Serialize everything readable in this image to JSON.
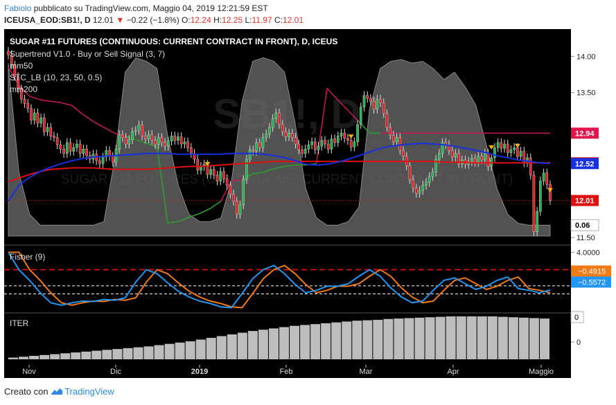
{
  "header": {
    "user": "Fabiolo",
    "published_text": "pubblicato su TradingView.com, Maggio 04, 2019 12:21:59 EST",
    "symbol": "ICEUSA_EOD:SB1!, D",
    "last_price": "12.01",
    "change": "−0.22 (−1.8%)",
    "o_label": "O:",
    "o_value": "12.24",
    "h_label": "H:",
    "h_value": "12.25",
    "l_label": "L:",
    "l_value": "11.97",
    "c_label": "C:",
    "c_value": "12.01"
  },
  "legend": {
    "title": "SUGAR #11 FUTURES (CONTINUOUS: CURRENT CONTRACT IN FRONT), D, ICEUS",
    "supertrend": "Supertrend V1.0 - Buy or Sell Signal (3, 7)",
    "mm50": "mm50",
    "stc": "STC_LB (10, 23, 50, 0.5)",
    "mm200": "mm200",
    "fisher": "Fisher (9)",
    "iter": "ITER"
  },
  "watermark": {
    "symbol": "SB1!, D",
    "name": "SUGAR #11 FUTURES (CONTINUOUS: CURRENT CONTRACT IN FRONT)"
  },
  "price_axis": {
    "ticks": [
      "14.00",
      "13.50",
      "11.50"
    ],
    "badges": [
      {
        "name": "supertrend-badge",
        "text": "12.94",
        "value": 12.94,
        "color": "#e0164d"
      },
      {
        "name": "mm200-badge",
        "text": "12.53",
        "value": 12.53,
        "color": "#e01010"
      },
      {
        "name": "mm50-badge",
        "text": "12.52",
        "value": 12.52,
        "color": "#1530e0"
      },
      {
        "name": "last-price-badge",
        "text": "12.01",
        "value": 12.01,
        "color": "#e01010"
      },
      {
        "name": "stc-badge",
        "text": "0.06",
        "value": 0.06,
        "color": "#ffffff"
      }
    ]
  },
  "fisher_axis": {
    "ticks": [
      "4.0000"
    ],
    "badges": [
      {
        "name": "fisher-trigger-badge",
        "text": "−0.4915",
        "color": "#f07a16"
      },
      {
        "name": "fisher-value-badge",
        "text": "−0.5572",
        "color": "#2196f3"
      }
    ]
  },
  "iter_axis": {
    "ticks": [
      "0"
    ],
    "badge": "0"
  },
  "time_axis": {
    "labels": [
      "Nov",
      "Dic",
      "2019",
      "Feb",
      "Mar",
      "Apr",
      "Maggio"
    ]
  },
  "footer": {
    "created_with": "Creato con",
    "brand": "TradingView"
  },
  "colors": {
    "background": "#000000",
    "up_candle": "#22b14c",
    "down_candle": "#e02020",
    "mm50": "#1530e0",
    "mm200": "#e01010",
    "supertrend_sell": "#c2185b",
    "supertrend_buy": "#2e9e2e",
    "stc_area": "#6e6e6e",
    "fisher": "#2196f3",
    "fisher_trigger": "#f07a16",
    "iter_bars": "#bdbdbd"
  },
  "chart_data": {
    "type": "candlestick",
    "title": "SUGAR #11 FUTURES (CONTINUOUS: CURRENT CONTRACT IN FRONT), D, ICEUS",
    "price_ylim": [
      11.5,
      14.3
    ],
    "x_labels": [
      "Nov",
      "Dic",
      "2019",
      "Feb",
      "Mar",
      "Apr",
      "Maggio"
    ],
    "close": [
      14.02,
      13.88,
      13.72,
      13.55,
      13.41,
      13.35,
      13.28,
      13.12,
      13.22,
      13.08,
      13.15,
      12.96,
      13.02,
      12.9,
      12.88,
      12.78,
      12.72,
      12.66,
      12.81,
      12.69,
      12.74,
      12.79,
      12.66,
      12.72,
      12.63,
      12.58,
      12.65,
      12.56,
      12.52,
      12.61,
      12.7,
      12.62,
      12.54,
      12.72,
      12.92,
      12.88,
      12.79,
      12.85,
      12.96,
      12.98,
      13.05,
      12.9,
      12.86,
      12.92,
      12.84,
      12.78,
      12.88,
      12.81,
      12.76,
      12.83,
      12.9,
      12.84,
      12.89,
      12.79,
      12.82,
      12.74,
      12.66,
      12.58,
      12.43,
      12.48,
      12.51,
      12.37,
      12.44,
      12.36,
      12.28,
      12.41,
      12.31,
      12.22,
      12.1,
      12.0,
      11.82,
      11.95,
      12.3,
      12.58,
      12.71,
      12.69,
      12.81,
      12.74,
      12.88,
      12.93,
      13.02,
      13.14,
      13.22,
      13.06,
      12.96,
      12.89,
      12.94,
      12.88,
      12.79,
      12.71,
      12.66,
      12.72,
      12.78,
      12.82,
      12.71,
      12.76,
      12.84,
      12.79,
      12.72,
      12.86,
      12.81,
      12.9,
      12.94,
      12.87,
      12.84,
      12.75,
      12.82,
      13.06,
      13.3,
      13.46,
      13.42,
      13.38,
      13.27,
      13.41,
      13.36,
      13.21,
      13.02,
      12.91,
      12.82,
      12.88,
      12.7,
      12.62,
      12.49,
      12.3,
      12.18,
      12.11,
      12.15,
      12.22,
      12.26,
      12.34,
      12.4,
      12.58,
      12.66,
      12.81,
      12.78,
      12.7,
      12.61,
      12.66,
      12.52,
      12.57,
      12.51,
      12.55,
      12.59,
      12.54,
      12.62,
      12.57,
      12.66,
      12.48,
      12.6,
      12.74,
      12.81,
      12.73,
      12.79,
      12.67,
      12.71,
      12.74,
      12.62,
      12.69,
      12.53,
      12.6,
      12.36,
      11.58,
      11.86,
      12.28,
      12.39,
      12.23,
      12.01
    ],
    "mm50": [
      12.0,
      12.22,
      12.33,
      12.41,
      12.47,
      12.52,
      12.56,
      12.59,
      12.61,
      12.62,
      12.63,
      12.64,
      12.65,
      12.66,
      12.66,
      12.66,
      12.65,
      12.65,
      12.65,
      12.65,
      12.65,
      12.66,
      12.66,
      12.66,
      12.65,
      12.63,
      12.6,
      12.56,
      12.51,
      12.5,
      12.51,
      12.54,
      12.58,
      12.63,
      12.68,
      12.73,
      12.76,
      12.78,
      12.79,
      12.8,
      12.79,
      12.78,
      12.76,
      12.73,
      12.7,
      12.67,
      12.63,
      12.6,
      12.57,
      12.55,
      12.53,
      12.52
    ],
    "mm200": [
      12.27,
      12.32,
      12.37,
      12.41,
      12.44,
      12.45,
      12.46,
      12.46,
      12.46,
      12.45,
      12.44,
      12.44,
      12.44,
      12.44,
      12.45,
      12.46,
      12.47,
      12.48,
      12.48,
      12.49,
      12.5,
      12.51,
      12.52,
      12.53,
      12.54,
      12.55,
      12.55,
      12.55,
      12.55,
      12.55,
      12.55,
      12.55,
      12.55,
      12.55,
      12.55,
      12.55,
      12.55,
      12.55,
      12.55,
      12.55,
      12.55,
      12.54,
      12.54,
      12.54,
      12.53,
      12.53,
      12.53,
      12.53,
      12.53,
      12.53,
      12.53,
      12.53
    ],
    "supertrend": [
      13.85,
      13.6,
      13.45,
      13.4,
      13.38,
      13.36,
      13.32,
      13.2,
      13.1,
      13.02,
      12.94,
      12.9,
      12.85,
      12.8,
      12.75,
      11.7,
      11.72,
      11.78,
      11.83,
      11.9,
      12.0,
      12.28,
      12.3,
      12.38,
      12.4,
      12.45,
      12.48,
      12.5,
      12.5,
      12.52,
      13.56,
      13.4,
      13.25,
      13.1,
      12.94,
      12.94,
      12.94,
      12.94,
      12.94,
      12.94,
      12.94,
      12.94,
      12.94,
      12.94,
      12.94,
      12.94,
      12.94,
      12.94,
      12.94,
      12.94,
      12.94,
      12.94
    ],
    "stc": [
      0.95,
      0.35,
      0.12,
      0.06,
      0.06,
      0.06,
      0.06,
      0.06,
      0.06,
      0.08,
      0.42,
      0.9,
      0.98,
      0.96,
      0.92,
      0.55,
      0.28,
      0.12,
      0.08,
      0.08,
      0.1,
      0.3,
      0.74,
      0.96,
      0.98,
      0.96,
      0.9,
      0.62,
      0.26,
      0.1,
      0.06,
      0.06,
      0.08,
      0.16,
      0.7,
      0.92,
      0.96,
      0.97,
      0.95,
      0.96,
      0.92,
      0.86,
      0.9,
      0.82,
      0.72,
      0.5,
      0.26,
      0.12,
      0.07,
      0.06,
      0.06,
      0.06
    ],
    "fisher": [
      4.0,
      1.9,
      0.6,
      -0.9,
      -2.1,
      -2.4,
      -2.1,
      -1.9,
      -1.95,
      -1.7,
      -1.8,
      -1.5,
      0.4,
      1.9,
      1.4,
      0.3,
      -0.7,
      -1.4,
      -1.9,
      -2.2,
      -2.6,
      -2.7,
      -1.0,
      0.8,
      1.9,
      2.4,
      1.4,
      0.1,
      -0.9,
      -0.6,
      -0.1,
      -0.1,
      0.2,
      1.1,
      1.9,
      1.1,
      -0.3,
      -1.4,
      -2.1,
      -1.9,
      -0.6,
      0.6,
      0.9,
      0.2,
      -0.5,
      -0.1,
      0.6,
      1.0,
      -0.4,
      -0.6,
      -0.9,
      -0.56
    ],
    "fisher_levels": [
      1.9,
      -0.06,
      -1.03
    ],
    "iter": [
      0.04,
      0.06,
      0.08,
      0.1,
      0.12,
      0.14,
      0.16,
      0.18,
      0.2,
      0.22,
      0.24,
      0.26,
      0.28,
      0.3,
      0.33,
      0.36,
      0.39,
      0.42,
      0.46,
      0.5,
      0.54,
      0.58,
      0.62,
      0.66,
      0.69,
      0.72,
      0.75,
      0.78,
      0.8,
      0.82,
      0.84,
      0.86,
      0.88,
      0.9,
      0.91,
      0.92,
      0.94,
      0.95,
      0.96,
      0.97,
      0.98,
      0.99,
      1.0,
      1.0,
      1.0,
      1.0,
      1.0,
      0.99,
      0.98,
      0.97,
      0.96,
      0.95
    ],
    "sell_signals_at": [
      61,
      105,
      148,
      156,
      166
    ]
  }
}
